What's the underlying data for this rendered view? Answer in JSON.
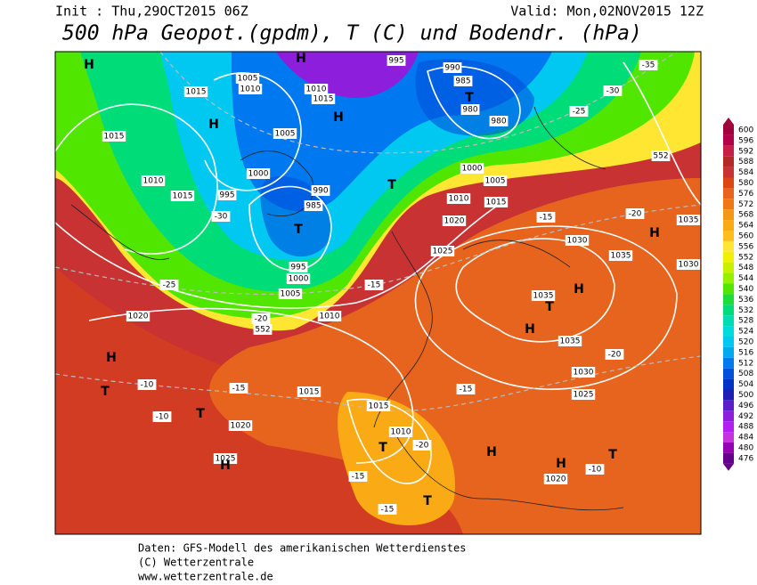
{
  "header": {
    "init": "Init : Thu,29OCT2015 06Z",
    "valid": "Valid: Mon,02NOV2015 12Z",
    "title": "500 hPa Geopot.(gpdm), T (C) und Bodendr. (hPa)"
  },
  "colorbar": {
    "ticks": [
      600,
      596,
      592,
      588,
      584,
      580,
      576,
      572,
      568,
      564,
      560,
      556,
      552,
      548,
      544,
      540,
      536,
      532,
      528,
      524,
      520,
      516,
      512,
      508,
      504,
      500,
      496,
      492,
      488,
      484,
      480,
      476
    ],
    "colors": [
      "#a0003c",
      "#b4004a",
      "#c81e46",
      "#b42828",
      "#c83232",
      "#dc4614",
      "#e6641e",
      "#f07814",
      "#f59614",
      "#faaa14",
      "#ffbe1e",
      "#ffe632",
      "#f0f000",
      "#c8f000",
      "#96f000",
      "#50e600",
      "#1edc3c",
      "#00dc78",
      "#00dcb4",
      "#00dcdc",
      "#00c8f0",
      "#00aaf0",
      "#0078f0",
      "#0050dc",
      "#0032c8",
      "#1e1eb4",
      "#5a1ec8",
      "#8c1edc",
      "#b41ef0",
      "#c832dc",
      "#9600b4",
      "#64008c"
    ]
  },
  "map": {
    "labels": [
      "H",
      "1015",
      "1015",
      "1010",
      "1015",
      "H",
      "H",
      "1005",
      "1010",
      "1010",
      "1015",
      "H",
      "995",
      "990",
      "985",
      "T",
      "980",
      "980",
      "1005",
      "1000",
      "995",
      "990",
      "985",
      "T",
      "T",
      "1000",
      "1005",
      "1010",
      "1015",
      "1020",
      "1025",
      "1030",
      "1035",
      "1035",
      "H",
      "T",
      "H",
      "1035",
      "1030",
      "1025",
      "H",
      "1035",
      "1030",
      "995",
      "1000",
      "1005",
      "1020",
      "1010",
      "H",
      "T",
      "T",
      "1015",
      "1020",
      "1025",
      "H",
      "1015",
      "1010",
      "T",
      "T",
      "H",
      "H",
      "T",
      "1020",
      "-30",
      "-25",
      "-20",
      "-15",
      "-10",
      "-10",
      "-15",
      "-15",
      "-20",
      "-20",
      "-15",
      "-20",
      "-15",
      "-15",
      "-10",
      "-25",
      "-30",
      "-35",
      "552",
      "552"
    ]
  },
  "footer": {
    "line1": "Daten: GFS-Modell des amerikanischen Wetterdienstes",
    "line2": "(C) Wetterzentrale",
    "line3": "www.wetterzentrale.de"
  }
}
